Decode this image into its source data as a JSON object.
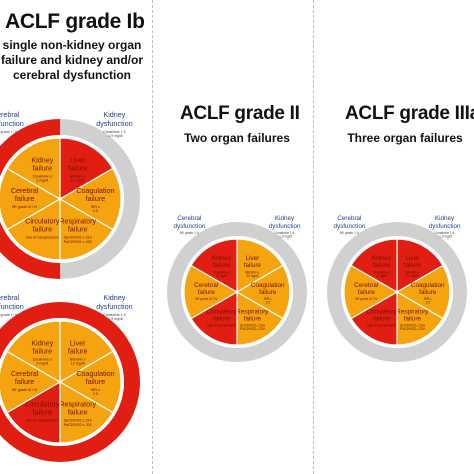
{
  "panels": [
    {
      "title": "ACLF grade Ib",
      "description_lines": [
        "single non-kidney organ",
        "failure  and kidney and/or",
        "cerebral dysfunction"
      ]
    },
    {
      "title": "ACLF grade II",
      "description_lines": [
        "Two organ failures"
      ]
    },
    {
      "title": "ACLF grade IIIa",
      "description_lines": [
        "Three organ failures"
      ]
    }
  ],
  "organs": {
    "liver": {
      "label": [
        "Liver",
        "failure"
      ],
      "criteria": [
        "Bilirubin ≥",
        "12 mg/dl"
      ]
    },
    "kidney": {
      "label": [
        "Kidney",
        "failure"
      ],
      "criteria": [
        "Creatinine ≥",
        "2 mg/dl"
      ]
    },
    "cerebral": {
      "label": [
        "Cerebral",
        "failure"
      ],
      "criteria": [
        "HE grade III / IV"
      ]
    },
    "circulatory": {
      "label": [
        "Circulatory",
        "failure"
      ],
      "criteria": [
        "Use of vasopressors"
      ]
    },
    "respiratory": {
      "label": [
        "Respiratory",
        "failure"
      ],
      "criteria": [
        "SpO2/FiO2 ≤ 214",
        "PaO2/FiO2 ≤ 200"
      ]
    },
    "coagulation": {
      "label": [
        "Coagulation",
        "failure"
      ],
      "criteria": [
        "INR ≥",
        "2.5"
      ]
    }
  },
  "dysfunctions": {
    "kidney": {
      "label": [
        "Kidney",
        "dysfunction"
      ],
      "criteria": [
        "Creatinine 1.5",
        "- 1.9 mg/dl"
      ]
    },
    "cerebral": {
      "label": [
        "Cerebral",
        "dysfunction"
      ],
      "criteria": [
        "HE grade I / II"
      ]
    }
  },
  "colors": {
    "failed": "#e01e12",
    "not_failed": "#f5a30f",
    "dysfunction_ring": "#e01e12",
    "inactive_ring": "#d0d0d0",
    "segment_border": "#ffffff",
    "outer_label": "#1f3f8a"
  },
  "wheels": [
    {
      "panel": 0,
      "failed": [
        "liver"
      ],
      "ring": {
        "right": "inactive",
        "left": "dysfunction"
      }
    },
    {
      "panel": 0,
      "failed": [
        "circulatory"
      ],
      "ring": {
        "right": "dysfunction",
        "left": "dysfunction"
      }
    },
    {
      "panel": 1,
      "failed": [
        "kidney",
        "circulatory"
      ],
      "ring": {
        "right": "inactive",
        "left": "inactive"
      }
    },
    {
      "panel": 2,
      "failed": [
        "kidney",
        "liver",
        "circulatory"
      ],
      "ring": {
        "right": "inactive",
        "left": "inactive"
      }
    }
  ]
}
